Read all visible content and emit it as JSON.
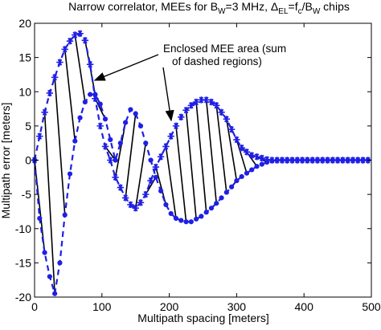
{
  "chart_data": {
    "type": "line",
    "title_parts": {
      "main": "Narrow correlator, MEEs for B",
      "w1": "W",
      "mid": "=3 MHz,  Δ",
      "el": "EL",
      "eq": "=f",
      "c": "c",
      "slash": "/B",
      "w2": "W",
      "tail": " chips"
    },
    "xlabel": "Multipath spacing [meters]",
    "ylabel": "Multipath error [meters]",
    "xlim": [
      0,
      500
    ],
    "ylim": [
      -20,
      20
    ],
    "xticks": [
      0,
      100,
      200,
      300,
      400,
      500
    ],
    "yticks": [
      20,
      15,
      10,
      5,
      0,
      -5,
      -10,
      -15,
      -20
    ],
    "grid": false,
    "series_color": "#1f1fe6",
    "series": [
      {
        "marker": "star",
        "x": [
          0,
          7.5,
          15,
          22.5,
          30,
          37.5,
          45,
          52.5,
          60,
          67.5,
          75,
          82.5,
          90,
          97.5,
          105,
          112.5,
          120,
          127.5,
          135,
          142.5,
          150,
          157.5,
          165,
          172.5,
          180,
          187.5,
          195,
          202.5,
          210,
          217.5,
          225,
          232.5,
          240,
          247.5,
          255,
          262.5,
          270,
          277.5,
          285,
          292.5,
          300,
          307.5,
          315,
          322.5,
          330,
          337.5,
          345,
          352.5,
          360,
          367.5,
          375,
          382.5,
          390,
          397.5,
          405,
          412.5,
          420,
          427.5,
          435,
          442.5,
          450,
          457.5,
          465,
          472.5,
          480,
          487.5,
          495
        ],
        "y": [
          0,
          3.5,
          7,
          9.8,
          12.1,
          14.3,
          16.2,
          17.4,
          18.3,
          18.5,
          17.5,
          14,
          9,
          5,
          2,
          0,
          -2.5,
          -4,
          -5.5,
          -6.5,
          -7,
          -6.2,
          -5,
          -3,
          -1,
          0.5,
          2,
          3.5,
          5,
          6.3,
          7.3,
          8,
          8.5,
          8.8,
          8.8,
          8.5,
          8,
          7,
          6,
          4.5,
          3,
          1.8,
          1.2,
          0.7,
          0.5,
          0.3,
          0.1,
          0,
          0,
          0,
          0,
          0,
          0,
          0,
          0,
          0,
          0,
          0,
          0,
          0,
          0,
          0,
          0,
          0,
          0,
          0,
          0
        ]
      },
      {
        "marker": "dot",
        "x": [
          0,
          7.5,
          15,
          22.5,
          30,
          37.5,
          45,
          52.5,
          60,
          67.5,
          75,
          82.5,
          90,
          97.5,
          105,
          112.5,
          120,
          127.5,
          135,
          142.5,
          150,
          157.5,
          165,
          172.5,
          180,
          187.5,
          195,
          202.5,
          210,
          217.5,
          225,
          232.5,
          240,
          247.5,
          255,
          262.5,
          270,
          277.5,
          285,
          292.5,
          300,
          307.5,
          315,
          322.5,
          330,
          337.5,
          345,
          352.5,
          360,
          367.5,
          375,
          382.5,
          390,
          397.5,
          405,
          412.5,
          420,
          427.5,
          435,
          442.5,
          450,
          457.5,
          465,
          472.5,
          480,
          487.5,
          495
        ],
        "y": [
          0,
          -8.5,
          -13.5,
          -17,
          -19.5,
          -15,
          -8,
          -2,
          2.8,
          6.2,
          8.5,
          9.6,
          9.6,
          8.2,
          6,
          3,
          0,
          2.5,
          5.5,
          7.4,
          6.8,
          5,
          2.5,
          0,
          -2.5,
          -4.5,
          -6.5,
          -7.8,
          -8.5,
          -8.8,
          -9,
          -9,
          -8.6,
          -8.2,
          -7.6,
          -7,
          -6.3,
          -5.5,
          -4.7,
          -3.9,
          -3,
          -2.4,
          -1.9,
          -1.4,
          -0.9,
          -0.6,
          -0.3,
          -0.1,
          0,
          0,
          0,
          0,
          0,
          0,
          0,
          0,
          0,
          0,
          0,
          0,
          0,
          0,
          0,
          0,
          0,
          0,
          0
        ]
      }
    ],
    "annotations": {
      "box_line1": "Enclosed MEE area (sum",
      "box_line2": "of dashed regions)"
    }
  }
}
